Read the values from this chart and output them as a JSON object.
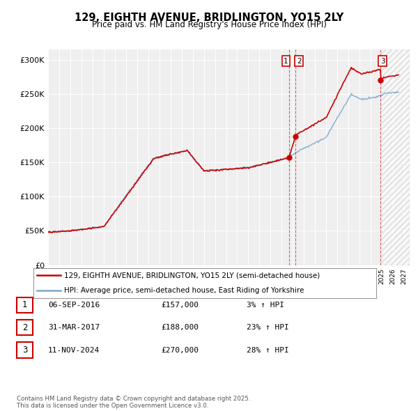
{
  "title": "129, EIGHTH AVENUE, BRIDLINGTON, YO15 2LY",
  "subtitle": "Price paid vs. HM Land Registry's House Price Index (HPI)",
  "ylabel_ticks": [
    "£0",
    "£50K",
    "£100K",
    "£150K",
    "£200K",
    "£250K",
    "£300K"
  ],
  "ytick_vals": [
    0,
    50000,
    100000,
    150000,
    200000,
    250000,
    300000
  ],
  "ylim": [
    0,
    315000
  ],
  "xlim_start": 1995.0,
  "xlim_end": 2027.5,
  "background_color": "#ffffff",
  "plot_bg_color": "#efefef",
  "grid_color": "#ffffff",
  "line1_color": "#cc0000",
  "line2_color": "#7aa6cc",
  "transactions": [
    {
      "num": 1,
      "date_label": "06-SEP-2016",
      "price": 157000,
      "pct": "3%",
      "x": 2016.68
    },
    {
      "num": 2,
      "date_label": "31-MAR-2017",
      "price": 188000,
      "pct": "23%",
      "x": 2017.25
    },
    {
      "num": 3,
      "date_label": "11-NOV-2024",
      "price": 270000,
      "pct": "28%",
      "x": 2024.86
    }
  ],
  "legend_line1": "129, EIGHTH AVENUE, BRIDLINGTON, YO15 2LY (semi-detached house)",
  "legend_line2": "HPI: Average price, semi-detached house, East Riding of Yorkshire",
  "footnote": "Contains HM Land Registry data © Crown copyright and database right 2025.\nThis data is licensed under the Open Government Licence v3.0.",
  "table_rows": [
    [
      "1",
      "06-SEP-2016",
      "£157,000",
      "3% ↑ HPI"
    ],
    [
      "2",
      "31-MAR-2017",
      "£188,000",
      "23% ↑ HPI"
    ],
    [
      "3",
      "11-NOV-2024",
      "£270,000",
      "28% ↑ HPI"
    ]
  ]
}
